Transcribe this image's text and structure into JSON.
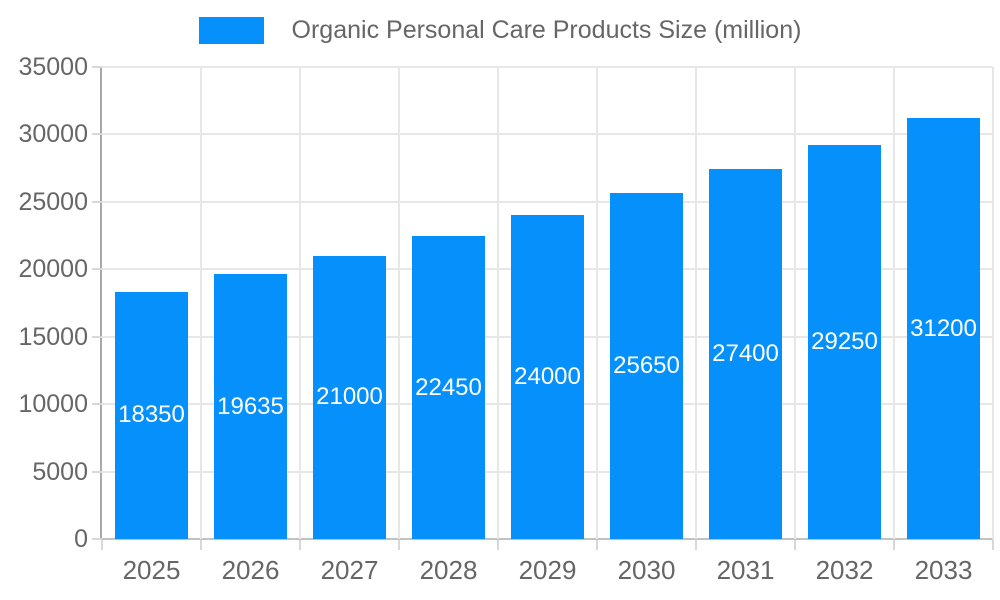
{
  "chart_data": {
    "type": "bar",
    "title": "Organic Personal Care Products Size (million)",
    "legend_position": "top",
    "categories": [
      "2025",
      "2026",
      "2027",
      "2028",
      "2029",
      "2030",
      "2031",
      "2032",
      "2033"
    ],
    "values": [
      18350,
      19635,
      21000,
      22450,
      24000,
      25650,
      27400,
      29250,
      31200
    ],
    "xlabel": "",
    "ylabel": "",
    "ylim": [
      0,
      35000
    ],
    "yticks": [
      0,
      5000,
      10000,
      15000,
      20000,
      25000,
      30000,
      35000
    ],
    "grid": true,
    "colors": {
      "bar": "#0590fb",
      "value_label": "#ffffff",
      "tick_label": "#666666",
      "gridline": "#e7e7e7",
      "y_axis_line": "#a8a8a8",
      "x_axis_line": "#c2c2c2"
    }
  }
}
